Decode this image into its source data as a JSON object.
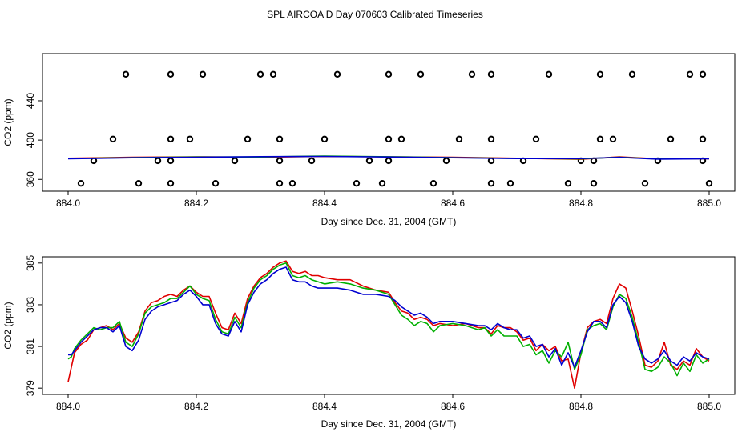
{
  "title": "SPL AIRCOA D  Day 070603  Calibrated Timeseries",
  "colors": {
    "red": "#e00000",
    "green": "#00b000",
    "blue": "#0000d0",
    "black": "#000000"
  },
  "chart_data": [
    {
      "type": "scatter",
      "panel": "top",
      "xlabel": "Day since Dec. 31, 2004 (GMT)",
      "ylabel": "CO2 (ppm)",
      "xlim": [
        883.96,
        885.04
      ],
      "ylim": [
        348,
        488
      ],
      "xticks": [
        884.0,
        884.2,
        884.4,
        884.6,
        884.8,
        885.0
      ],
      "xtick_labels": [
        "884.0",
        "884.2",
        "884.4",
        "884.6",
        "884.8",
        "885.0"
      ],
      "yticks": [
        360,
        400,
        440
      ],
      "ytick_labels": [
        "360",
        "400",
        "440"
      ],
      "points": [
        {
          "x": 884.09,
          "y": 467
        },
        {
          "x": 884.16,
          "y": 467
        },
        {
          "x": 884.21,
          "y": 467
        },
        {
          "x": 884.3,
          "y": 467
        },
        {
          "x": 884.32,
          "y": 467
        },
        {
          "x": 884.42,
          "y": 467
        },
        {
          "x": 884.5,
          "y": 467
        },
        {
          "x": 884.55,
          "y": 467
        },
        {
          "x": 884.63,
          "y": 467
        },
        {
          "x": 884.66,
          "y": 467
        },
        {
          "x": 884.75,
          "y": 467
        },
        {
          "x": 884.83,
          "y": 467
        },
        {
          "x": 884.88,
          "y": 467
        },
        {
          "x": 884.97,
          "y": 467
        },
        {
          "x": 884.99,
          "y": 467
        },
        {
          "x": 884.07,
          "y": 401
        },
        {
          "x": 884.16,
          "y": 401
        },
        {
          "x": 884.19,
          "y": 401
        },
        {
          "x": 884.28,
          "y": 401
        },
        {
          "x": 884.33,
          "y": 401
        },
        {
          "x": 884.4,
          "y": 401
        },
        {
          "x": 884.5,
          "y": 401
        },
        {
          "x": 884.52,
          "y": 401
        },
        {
          "x": 884.61,
          "y": 401
        },
        {
          "x": 884.66,
          "y": 401
        },
        {
          "x": 884.73,
          "y": 401
        },
        {
          "x": 884.83,
          "y": 401
        },
        {
          "x": 884.85,
          "y": 401
        },
        {
          "x": 884.94,
          "y": 401
        },
        {
          "x": 884.99,
          "y": 401
        },
        {
          "x": 884.04,
          "y": 379
        },
        {
          "x": 884.14,
          "y": 379
        },
        {
          "x": 884.16,
          "y": 379
        },
        {
          "x": 884.26,
          "y": 379
        },
        {
          "x": 884.33,
          "y": 379
        },
        {
          "x": 884.38,
          "y": 379
        },
        {
          "x": 884.47,
          "y": 379
        },
        {
          "x": 884.5,
          "y": 379
        },
        {
          "x": 884.59,
          "y": 379
        },
        {
          "x": 884.66,
          "y": 379
        },
        {
          "x": 884.71,
          "y": 379
        },
        {
          "x": 884.8,
          "y": 379
        },
        {
          "x": 884.82,
          "y": 379
        },
        {
          "x": 884.92,
          "y": 379
        },
        {
          "x": 884.99,
          "y": 379
        },
        {
          "x": 884.02,
          "y": 356
        },
        {
          "x": 884.11,
          "y": 356
        },
        {
          "x": 884.16,
          "y": 356
        },
        {
          "x": 884.23,
          "y": 356
        },
        {
          "x": 884.33,
          "y": 356
        },
        {
          "x": 884.35,
          "y": 356
        },
        {
          "x": 884.45,
          "y": 356
        },
        {
          "x": 884.49,
          "y": 356
        },
        {
          "x": 884.57,
          "y": 356
        },
        {
          "x": 884.66,
          "y": 356
        },
        {
          "x": 884.69,
          "y": 356
        },
        {
          "x": 884.78,
          "y": 356
        },
        {
          "x": 884.82,
          "y": 356
        },
        {
          "x": 884.9,
          "y": 356
        },
        {
          "x": 885.0,
          "y": 356
        }
      ],
      "series": [
        {
          "name": "red",
          "color": "#e00000",
          "x": [
            884.0,
            884.1,
            884.2,
            884.3,
            884.4,
            884.5,
            884.6,
            884.7,
            884.8,
            884.86,
            884.92,
            885.0
          ],
          "values": [
            381.5,
            382.5,
            383.0,
            382.5,
            383.5,
            383.0,
            382.5,
            381.5,
            380.5,
            383.0,
            381.0,
            381.0
          ]
        },
        {
          "name": "green",
          "color": "#00b000",
          "x": [
            884.0,
            884.1,
            884.2,
            884.3,
            884.4,
            884.5,
            884.6,
            884.7,
            884.8,
            884.86,
            884.92,
            885.0
          ],
          "values": [
            381.2,
            382.2,
            382.8,
            382.8,
            383.8,
            383.1,
            382.2,
            381.4,
            380.9,
            382.6,
            380.8,
            381.2
          ]
        },
        {
          "name": "blue",
          "color": "#0000d0",
          "x": [
            884.0,
            884.1,
            884.2,
            884.3,
            884.4,
            884.5,
            884.6,
            884.7,
            884.8,
            884.86,
            884.92,
            885.0
          ],
          "values": [
            381.0,
            382.0,
            382.6,
            383.2,
            383.4,
            382.8,
            382.0,
            381.2,
            381.2,
            382.4,
            380.6,
            381.0
          ]
        }
      ]
    },
    {
      "type": "line",
      "panel": "bottom",
      "xlabel": "Day since Dec. 31, 2004 (GMT)",
      "ylabel": "CO2 (ppm)",
      "xlim": [
        883.96,
        885.04
      ],
      "ylim": [
        378.7,
        385.3
      ],
      "xticks": [
        884.0,
        884.2,
        884.4,
        884.6,
        884.8,
        885.0
      ],
      "xtick_labels": [
        "884.0",
        "884.2",
        "884.4",
        "884.6",
        "884.8",
        "885.0"
      ],
      "yticks": [
        379,
        381,
        383,
        385
      ],
      "ytick_labels": [
        "379",
        "381",
        "383",
        "385"
      ],
      "x": [
        884.0,
        884.005,
        884.01,
        884.02,
        884.03,
        884.04,
        884.05,
        884.06,
        884.07,
        884.08,
        884.09,
        884.1,
        884.11,
        884.12,
        884.13,
        884.14,
        884.15,
        884.16,
        884.17,
        884.18,
        884.19,
        884.2,
        884.21,
        884.22,
        884.23,
        884.24,
        884.25,
        884.26,
        884.27,
        884.28,
        884.29,
        884.3,
        884.31,
        884.32,
        884.33,
        884.34,
        884.35,
        884.36,
        884.37,
        884.38,
        884.39,
        884.4,
        884.42,
        884.44,
        884.46,
        884.48,
        884.5,
        884.51,
        884.52,
        884.53,
        884.54,
        884.55,
        884.56,
        884.57,
        884.58,
        884.6,
        884.62,
        884.64,
        884.65,
        884.66,
        884.67,
        884.68,
        884.69,
        884.7,
        884.71,
        884.72,
        884.73,
        884.74,
        884.75,
        884.76,
        884.77,
        884.78,
        884.79,
        884.8,
        884.81,
        884.82,
        884.83,
        884.84,
        884.85,
        884.86,
        884.87,
        884.88,
        884.89,
        884.9,
        884.91,
        884.92,
        884.93,
        884.94,
        884.95,
        884.96,
        884.97,
        884.98,
        884.99,
        885.0
      ],
      "series": [
        {
          "name": "red",
          "color": "#e00000",
          "values": [
            379.3,
            380.0,
            380.7,
            381.1,
            381.3,
            381.8,
            381.9,
            382.0,
            381.8,
            382.1,
            381.4,
            381.2,
            381.7,
            382.7,
            383.1,
            383.2,
            383.4,
            383.5,
            383.4,
            383.7,
            383.9,
            383.6,
            383.4,
            383.4,
            382.6,
            381.9,
            381.8,
            382.6,
            382.1,
            383.3,
            383.9,
            384.3,
            384.5,
            384.8,
            385.0,
            385.1,
            384.6,
            384.5,
            384.6,
            384.4,
            384.4,
            384.3,
            384.2,
            384.2,
            383.9,
            383.7,
            383.6,
            383.1,
            382.7,
            382.6,
            382.3,
            382.4,
            382.3,
            382.0,
            382.1,
            382.0,
            382.1,
            381.9,
            381.9,
            381.6,
            382.0,
            381.9,
            381.9,
            381.7,
            381.3,
            381.4,
            380.8,
            381.1,
            380.8,
            381.0,
            380.3,
            380.4,
            379.0,
            380.7,
            381.9,
            382.2,
            382.3,
            382.1,
            383.3,
            384.0,
            383.8,
            382.7,
            381.5,
            380.1,
            380.0,
            380.3,
            381.2,
            380.1,
            379.9,
            380.3,
            380.1,
            380.9,
            380.5,
            380.3
          ]
        },
        {
          "name": "green",
          "color": "#00b000",
          "values": [
            380.4,
            380.5,
            380.9,
            381.3,
            381.6,
            381.9,
            381.8,
            381.9,
            381.9,
            382.2,
            381.2,
            381.0,
            381.6,
            382.6,
            382.9,
            383.0,
            383.1,
            383.3,
            383.3,
            383.6,
            383.9,
            383.5,
            383.3,
            383.2,
            382.3,
            381.7,
            381.6,
            382.4,
            381.9,
            383.1,
            383.8,
            384.2,
            384.4,
            384.7,
            384.9,
            385.0,
            384.4,
            384.3,
            384.4,
            384.2,
            384.1,
            384.0,
            384.1,
            384.0,
            383.8,
            383.7,
            383.5,
            383.0,
            382.5,
            382.3,
            382.0,
            382.2,
            382.1,
            381.7,
            382.0,
            382.1,
            382.0,
            381.8,
            381.9,
            381.5,
            381.8,
            381.5,
            381.5,
            381.5,
            381.0,
            381.1,
            380.6,
            380.8,
            380.2,
            380.8,
            380.5,
            381.2,
            379.9,
            380.6,
            381.8,
            382.0,
            382.1,
            381.8,
            382.9,
            383.5,
            383.3,
            382.4,
            381.2,
            379.9,
            379.8,
            380.0,
            380.5,
            380.2,
            379.6,
            380.2,
            379.8,
            380.6,
            380.2,
            380.4
          ]
        },
        {
          "name": "blue",
          "color": "#0000d0",
          "values": [
            380.6,
            380.6,
            380.8,
            381.2,
            381.5,
            381.8,
            381.9,
            381.9,
            381.7,
            382.0,
            381.0,
            380.8,
            381.3,
            382.3,
            382.7,
            382.9,
            383.0,
            383.1,
            383.2,
            383.5,
            383.7,
            383.4,
            383.0,
            383.0,
            382.1,
            381.6,
            381.5,
            382.2,
            381.7,
            383.0,
            383.6,
            384.0,
            384.2,
            384.5,
            384.7,
            384.8,
            384.2,
            384.1,
            384.1,
            383.9,
            383.8,
            383.8,
            383.8,
            383.7,
            383.5,
            383.5,
            383.4,
            383.2,
            382.9,
            382.7,
            382.5,
            382.6,
            382.4,
            382.1,
            382.2,
            382.2,
            382.1,
            382.0,
            382.0,
            381.8,
            382.1,
            381.9,
            381.8,
            381.8,
            381.4,
            381.5,
            381.0,
            381.1,
            380.5,
            380.9,
            380.1,
            380.7,
            380.0,
            380.8,
            381.7,
            382.2,
            382.2,
            381.9,
            383.0,
            383.4,
            383.1,
            382.2,
            381.0,
            380.4,
            380.2,
            380.4,
            380.8,
            380.3,
            380.1,
            380.5,
            380.3,
            380.7,
            380.5,
            380.4
          ]
        }
      ]
    }
  ]
}
